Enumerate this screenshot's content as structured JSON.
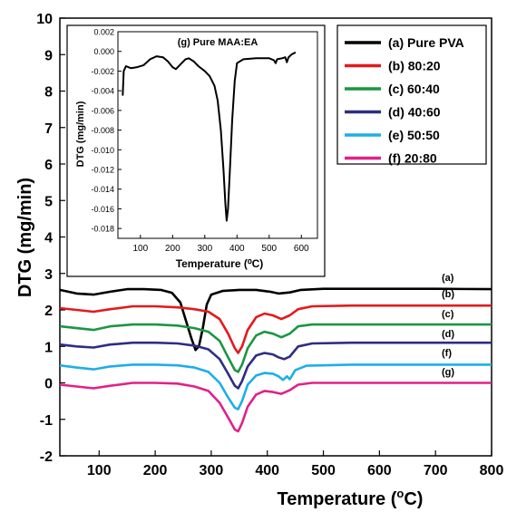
{
  "chart_data": [
    {
      "type": "line",
      "xlabel": "Temperature (°C)",
      "xlabel_main": "Temperature (",
      "xlabel_deg": "o",
      "xlabel_unit": "C)",
      "ylabel": "DTG (mg/min)",
      "xlim": [
        30,
        800
      ],
      "ylim": [
        -2,
        10
      ],
      "xticks": [
        100,
        200,
        300,
        400,
        500,
        600,
        700,
        800
      ],
      "yticks": [
        -2,
        -1,
        0,
        1,
        2,
        3,
        4,
        5,
        6,
        7,
        8,
        9,
        10
      ],
      "legend_position": "top-right",
      "series": [
        {
          "name": "(a) Pure PVA",
          "label": "(a)",
          "color": "#000000",
          "points": [
            [
              30,
              2.55
            ],
            [
              60,
              2.45
            ],
            [
              90,
              2.42
            ],
            [
              120,
              2.5
            ],
            [
              150,
              2.57
            ],
            [
              180,
              2.57
            ],
            [
              210,
              2.55
            ],
            [
              230,
              2.47
            ],
            [
              245,
              2.2
            ],
            [
              255,
              1.7
            ],
            [
              265,
              1.2
            ],
            [
              272,
              0.9
            ],
            [
              278,
              1.0
            ],
            [
              285,
              1.5
            ],
            [
              292,
              2.15
            ],
            [
              300,
              2.42
            ],
            [
              320,
              2.52
            ],
            [
              350,
              2.55
            ],
            [
              380,
              2.55
            ],
            [
              405,
              2.5
            ],
            [
              420,
              2.45
            ],
            [
              440,
              2.48
            ],
            [
              460,
              2.55
            ],
            [
              500,
              2.58
            ],
            [
              600,
              2.58
            ],
            [
              700,
              2.58
            ],
            [
              800,
              2.57
            ]
          ]
        },
        {
          "name": "(b) 80:20",
          "label": "(b)",
          "color": "#e31a1c",
          "points": [
            [
              30,
              2.05
            ],
            [
              60,
              2.0
            ],
            [
              90,
              1.95
            ],
            [
              120,
              2.02
            ],
            [
              160,
              2.1
            ],
            [
              200,
              2.1
            ],
            [
              240,
              2.07
            ],
            [
              270,
              2.02
            ],
            [
              295,
              1.95
            ],
            [
              315,
              1.75
            ],
            [
              330,
              1.35
            ],
            [
              342,
              0.95
            ],
            [
              348,
              0.82
            ],
            [
              355,
              1.0
            ],
            [
              365,
              1.45
            ],
            [
              380,
              1.8
            ],
            [
              395,
              1.9
            ],
            [
              410,
              1.85
            ],
            [
              425,
              1.75
            ],
            [
              440,
              1.85
            ],
            [
              455,
              2.02
            ],
            [
              480,
              2.1
            ],
            [
              550,
              2.12
            ],
            [
              650,
              2.12
            ],
            [
              800,
              2.12
            ]
          ]
        },
        {
          "name": "(c) 60:40",
          "label": "(c)",
          "color": "#1a9641",
          "points": [
            [
              30,
              1.55
            ],
            [
              60,
              1.5
            ],
            [
              90,
              1.45
            ],
            [
              120,
              1.55
            ],
            [
              160,
              1.6
            ],
            [
              200,
              1.6
            ],
            [
              240,
              1.57
            ],
            [
              270,
              1.5
            ],
            [
              295,
              1.4
            ],
            [
              315,
              1.15
            ],
            [
              330,
              0.7
            ],
            [
              342,
              0.35
            ],
            [
              348,
              0.3
            ],
            [
              355,
              0.5
            ],
            [
              365,
              0.95
            ],
            [
              380,
              1.3
            ],
            [
              395,
              1.4
            ],
            [
              410,
              1.35
            ],
            [
              425,
              1.25
            ],
            [
              440,
              1.35
            ],
            [
              455,
              1.55
            ],
            [
              480,
              1.6
            ],
            [
              550,
              1.6
            ],
            [
              650,
              1.6
            ],
            [
              800,
              1.6
            ]
          ]
        },
        {
          "name": "(d) 40:60",
          "label": "(d)",
          "color": "#2e2d83",
          "points": [
            [
              30,
              1.05
            ],
            [
              60,
              1.0
            ],
            [
              90,
              0.97
            ],
            [
              120,
              1.05
            ],
            [
              160,
              1.1
            ],
            [
              200,
              1.1
            ],
            [
              240,
              1.08
            ],
            [
              270,
              1.02
            ],
            [
              295,
              0.92
            ],
            [
              315,
              0.65
            ],
            [
              330,
              0.25
            ],
            [
              342,
              -0.08
            ],
            [
              348,
              -0.15
            ],
            [
              355,
              0.05
            ],
            [
              365,
              0.45
            ],
            [
              380,
              0.75
            ],
            [
              395,
              0.82
            ],
            [
              410,
              0.78
            ],
            [
              420,
              0.7
            ],
            [
              430,
              0.65
            ],
            [
              440,
              0.72
            ],
            [
              455,
              1.0
            ],
            [
              480,
              1.08
            ],
            [
              550,
              1.1
            ],
            [
              650,
              1.1
            ],
            [
              800,
              1.1
            ]
          ]
        },
        {
          "name": "(e) 50:50",
          "label": "(f)",
          "color": "#1eaee8",
          "points": [
            [
              30,
              0.48
            ],
            [
              60,
              0.42
            ],
            [
              90,
              0.37
            ],
            [
              120,
              0.45
            ],
            [
              160,
              0.5
            ],
            [
              200,
              0.5
            ],
            [
              240,
              0.48
            ],
            [
              270,
              0.42
            ],
            [
              295,
              0.3
            ],
            [
              315,
              0.0
            ],
            [
              330,
              -0.4
            ],
            [
              342,
              -0.68
            ],
            [
              348,
              -0.72
            ],
            [
              355,
              -0.5
            ],
            [
              365,
              -0.05
            ],
            [
              380,
              0.2
            ],
            [
              395,
              0.27
            ],
            [
              410,
              0.25
            ],
            [
              420,
              0.18
            ],
            [
              428,
              0.08
            ],
            [
              435,
              0.18
            ],
            [
              440,
              0.1
            ],
            [
              450,
              0.35
            ],
            [
              470,
              0.47
            ],
            [
              550,
              0.5
            ],
            [
              650,
              0.5
            ],
            [
              800,
              0.5
            ]
          ]
        },
        {
          "name": "(f)  20:80",
          "label": "(g)",
          "color": "#e0218a",
          "points": [
            [
              30,
              -0.05
            ],
            [
              60,
              -0.1
            ],
            [
              90,
              -0.15
            ],
            [
              120,
              -0.08
            ],
            [
              160,
              0.0
            ],
            [
              200,
              0.0
            ],
            [
              240,
              -0.02
            ],
            [
              270,
              -0.1
            ],
            [
              295,
              -0.22
            ],
            [
              315,
              -0.55
            ],
            [
              330,
              -0.95
            ],
            [
              342,
              -1.28
            ],
            [
              348,
              -1.33
            ],
            [
              355,
              -1.1
            ],
            [
              365,
              -0.65
            ],
            [
              380,
              -0.32
            ],
            [
              395,
              -0.22
            ],
            [
              410,
              -0.25
            ],
            [
              425,
              -0.3
            ],
            [
              440,
              -0.2
            ],
            [
              455,
              -0.05
            ],
            [
              480,
              0.0
            ],
            [
              550,
              0.0
            ],
            [
              650,
              0.0
            ],
            [
              800,
              0.0
            ]
          ]
        }
      ]
    },
    {
      "type": "line",
      "title": "(g) Pure MAA:EA",
      "xlabel": "Temperature (⁰C)",
      "ylabel": "DTG (mg/min)",
      "xlim": [
        30,
        650
      ],
      "ylim": [
        -0.019,
        0.002
      ],
      "xticks": [
        100,
        200,
        300,
        400,
        500,
        600
      ],
      "ytick_labels": [
        "0.002",
        "0.000",
        "-0.002",
        "-0.004",
        "-0.006",
        "-0.008",
        "-0.010",
        "-0.012",
        "-0.014",
        "-0.016",
        "-0.018"
      ],
      "yticks": [
        0.002,
        0.0,
        -0.002,
        -0.004,
        -0.006,
        -0.008,
        -0.01,
        -0.012,
        -0.014,
        -0.016,
        -0.018
      ],
      "series": [
        {
          "color": "#000000",
          "points": [
            [
              45,
              -0.0045
            ],
            [
              48,
              -0.002
            ],
            [
              55,
              -0.0015
            ],
            [
              70,
              -0.0017
            ],
            [
              90,
              -0.0016
            ],
            [
              110,
              -0.0014
            ],
            [
              130,
              -0.0008
            ],
            [
              150,
              -0.0005
            ],
            [
              170,
              -0.0006
            ],
            [
              185,
              -0.001
            ],
            [
              200,
              -0.0016
            ],
            [
              210,
              -0.0018
            ],
            [
              225,
              -0.0013
            ],
            [
              240,
              -0.0008
            ],
            [
              250,
              -0.0007
            ],
            [
              265,
              -0.001
            ],
            [
              280,
              -0.0015
            ],
            [
              300,
              -0.002
            ],
            [
              315,
              -0.0025
            ],
            [
              330,
              -0.0035
            ],
            [
              340,
              -0.005
            ],
            [
              350,
              -0.008
            ],
            [
              358,
              -0.012
            ],
            [
              364,
              -0.0155
            ],
            [
              368,
              -0.0172
            ],
            [
              372,
              -0.016
            ],
            [
              378,
              -0.012
            ],
            [
              385,
              -0.007
            ],
            [
              393,
              -0.003
            ],
            [
              400,
              -0.0012
            ],
            [
              420,
              -0.0008
            ],
            [
              460,
              -0.0007
            ],
            [
              500,
              -0.0007
            ],
            [
              515,
              -0.0009
            ],
            [
              520,
              -0.0012
            ],
            [
              525,
              -0.0008
            ],
            [
              540,
              -0.0007
            ],
            [
              550,
              -0.0006
            ],
            [
              555,
              -0.0011
            ],
            [
              560,
              -0.0006
            ],
            [
              570,
              -0.0003
            ],
            [
              582,
              -0.0001
            ]
          ]
        }
      ]
    }
  ]
}
